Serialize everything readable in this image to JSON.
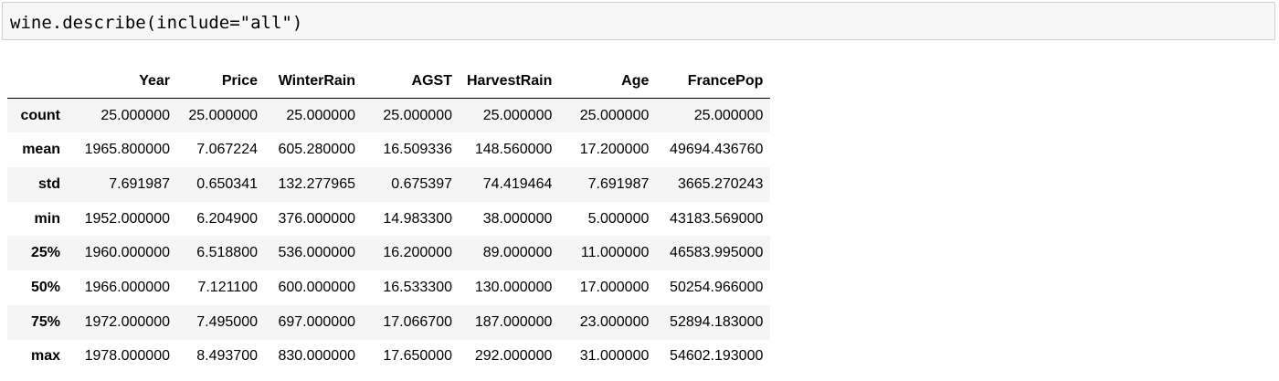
{
  "code_cell": {
    "code": "wine.describe(include=\"all\")"
  },
  "table": {
    "columns": [
      "Year",
      "Price",
      "WinterRain",
      "AGST",
      "HarvestRain",
      "Age",
      "FrancePop"
    ],
    "rows": [
      {
        "index": "count",
        "cells": [
          "25.000000",
          "25.000000",
          "25.000000",
          "25.000000",
          "25.000000",
          "25.000000",
          "25.000000"
        ]
      },
      {
        "index": "mean",
        "cells": [
          "1965.800000",
          "7.067224",
          "605.280000",
          "16.509336",
          "148.560000",
          "17.200000",
          "49694.436760"
        ]
      },
      {
        "index": "std",
        "cells": [
          "7.691987",
          "0.650341",
          "132.277965",
          "0.675397",
          "74.419464",
          "7.691987",
          "3665.270243"
        ]
      },
      {
        "index": "min",
        "cells": [
          "1952.000000",
          "6.204900",
          "376.000000",
          "14.983300",
          "38.000000",
          "5.000000",
          "43183.569000"
        ]
      },
      {
        "index": "25%",
        "cells": [
          "1960.000000",
          "6.518800",
          "536.000000",
          "16.200000",
          "89.000000",
          "11.000000",
          "46583.995000"
        ]
      },
      {
        "index": "50%",
        "cells": [
          "1966.000000",
          "7.121100",
          "600.000000",
          "16.533300",
          "130.000000",
          "17.000000",
          "50254.966000"
        ]
      },
      {
        "index": "75%",
        "cells": [
          "1972.000000",
          "7.495000",
          "697.000000",
          "17.066700",
          "187.000000",
          "23.000000",
          "52894.183000"
        ]
      },
      {
        "index": "max",
        "cells": [
          "1978.000000",
          "8.493700",
          "830.000000",
          "17.650000",
          "292.000000",
          "31.000000",
          "54602.193000"
        ]
      }
    ]
  }
}
